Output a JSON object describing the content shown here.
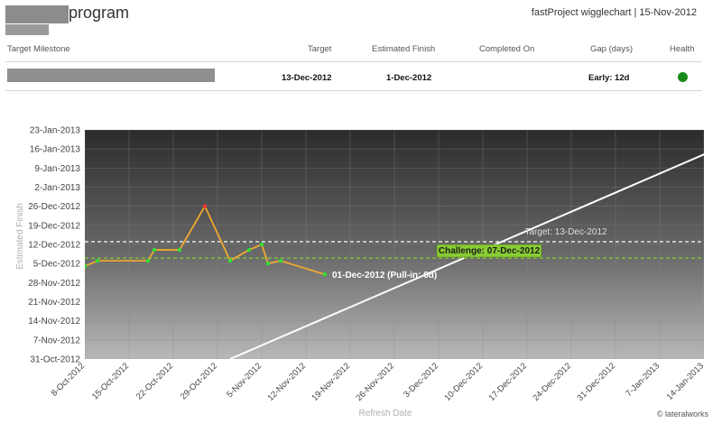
{
  "header": {
    "program_label": "program",
    "report_title": "fastProject wigglechart | 15-Nov-2012"
  },
  "table": {
    "columns": [
      "Target Milestone",
      "Target",
      "Estimated Finish",
      "Completed On",
      "Gap (days)",
      "Health"
    ],
    "row": {
      "target": "13-Dec-2012",
      "estimated_finish": "1-Dec-2012",
      "completed_on": "",
      "gap": "Early: 12d",
      "health_color": "#1a8a1a"
    }
  },
  "chart_data": {
    "type": "line",
    "xlabel": "Refresh Date",
    "ylabel": "Estimated Finish",
    "xlim": [
      "2012-10-08",
      "2013-01-14"
    ],
    "ylim": [
      "2012-10-31",
      "2013-01-23"
    ],
    "x_ticks": [
      "8-Oct-2012",
      "15-Oct-2012",
      "22-Oct-2012",
      "29-Oct-2012",
      "5-Nov-2012",
      "12-Nov-2012",
      "19-Nov-2012",
      "26-Nov-2012",
      "3-Dec-2012",
      "10-Dec-2012",
      "17-Dec-2012",
      "24-Dec-2012",
      "31-Dec-2012",
      "7-Jan-2013",
      "14-Jan-2013"
    ],
    "y_ticks": [
      "31-Oct-2012",
      "7-Nov-2012",
      "14-Nov-2012",
      "21-Nov-2012",
      "28-Nov-2012",
      "5-Dec-2012",
      "12-Dec-2012",
      "19-Dec-2012",
      "26-Dec-2012",
      "2-Jan-2013",
      "9-Jan-2013",
      "16-Jan-2013",
      "23-Jan-2013"
    ],
    "grid": true,
    "series": [
      {
        "values": [
          {
            "x": "2012-10-08",
            "y": "2012-12-04"
          },
          {
            "x": "2012-10-10",
            "y": "2012-12-06"
          },
          {
            "x": "2012-10-18",
            "y": "2012-12-06"
          },
          {
            "x": "2012-10-19",
            "y": "2012-12-10"
          },
          {
            "x": "2012-10-23",
            "y": "2012-12-10"
          },
          {
            "x": "2012-10-27",
            "y": "2012-12-26"
          },
          {
            "x": "2012-10-31",
            "y": "2012-12-06"
          },
          {
            "x": "2012-11-03",
            "y": "2012-12-10"
          },
          {
            "x": "2012-11-05",
            "y": "2012-12-12"
          },
          {
            "x": "2012-11-06",
            "y": "2012-12-05"
          },
          {
            "x": "2012-11-08",
            "y": "2012-12-06"
          },
          {
            "x": "2012-11-15",
            "y": "2012-12-01"
          }
        ],
        "color": "#f0a830",
        "point_color": "#33dd33",
        "peak_point_color": "#ff3333"
      }
    ],
    "reference_lines": [
      {
        "y": "2012-12-13",
        "label": "Target: 13-Dec-2012",
        "color": "#ffffff",
        "style": "dashed"
      },
      {
        "y": "2012-12-07",
        "label": "Challenge: 07-Dec-2012",
        "color": "#88cc33",
        "style": "dashed"
      }
    ],
    "diagonal_line": {
      "from": {
        "x": "2012-10-31",
        "y": "2012-10-31"
      },
      "to": {
        "x": "2013-01-23",
        "y": "2013-01-23"
      },
      "color": "#ffffff"
    },
    "annotation": {
      "x": "2012-11-15",
      "y": "2012-12-01",
      "text": "01-Dec-2012 (Pull-in: 6d)"
    }
  },
  "credit": "© lateralworks"
}
